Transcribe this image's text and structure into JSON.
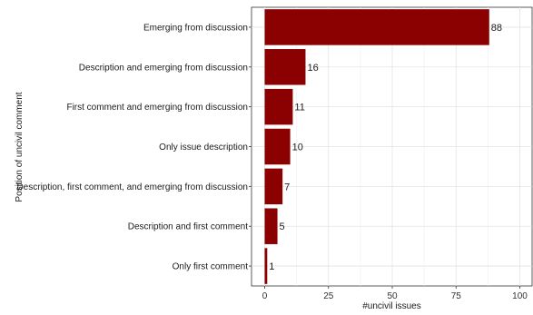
{
  "chart_data": {
    "type": "bar",
    "orientation": "horizontal",
    "categories": [
      "Emerging from discussion",
      "Description and emerging from discussion",
      "First comment and emerging from discussion",
      "Only issue description",
      "Description, first comment, and emerging from discussion",
      "Description and first comment",
      "Only first comment"
    ],
    "values": [
      88,
      16,
      11,
      10,
      7,
      5,
      1
    ],
    "data_labels": [
      "88",
      "16",
      "11",
      "10",
      "7",
      "5",
      "1"
    ],
    "xlabel": "#uncivil issues",
    "ylabel": "Position of uncivil comment",
    "xlim": [
      0,
      102
    ],
    "xticks": [
      0,
      25,
      50,
      75,
      100
    ],
    "xtick_labels": [
      "0",
      "25",
      "50",
      "75",
      "100"
    ],
    "bar_color": "#8b0000",
    "grid": true,
    "legend": "none"
  }
}
